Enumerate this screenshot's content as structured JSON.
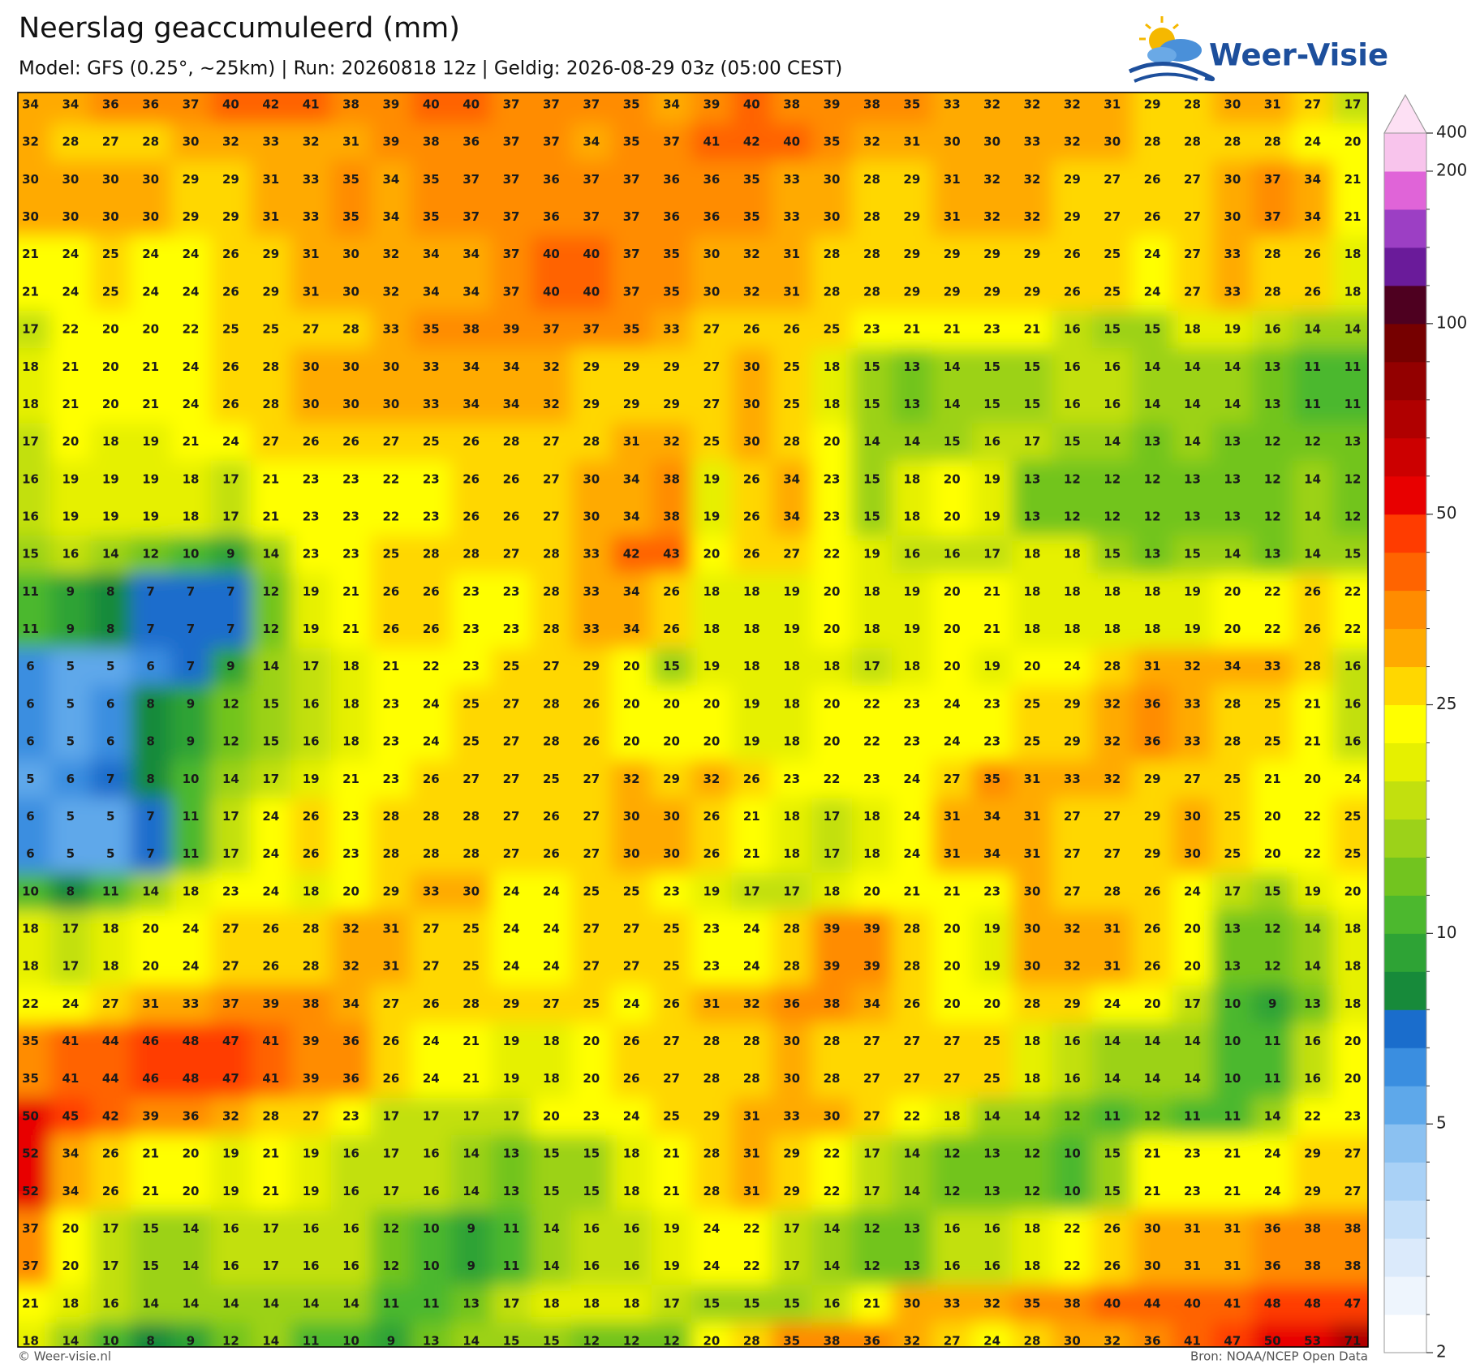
{
  "header": {
    "title": "Neerslag geaccumuleerd (mm)",
    "subtitle": "Model: GFS (0.25°, ~25km)  |  Run: 20260818 12z  |  Geldig: 2026-08-29 03z (05:00 CEST)"
  },
  "logo": {
    "text": "Weer-Visie"
  },
  "map": {
    "values": [
      [
        34,
        34,
        36,
        36,
        37,
        40,
        42,
        41,
        38,
        39,
        40,
        40,
        37,
        37,
        37,
        35,
        34,
        39,
        40,
        38,
        39,
        38,
        35,
        33,
        32,
        32,
        32,
        31,
        29,
        28,
        30,
        31,
        27,
        17
      ],
      [
        32,
        28,
        27,
        28,
        30,
        32,
        33,
        32,
        31,
        39,
        38,
        36,
        37,
        37,
        34,
        35,
        37,
        41,
        42,
        40,
        35,
        32,
        31,
        30,
        30,
        33,
        32,
        30,
        28,
        28,
        28,
        28,
        24,
        20
      ],
      [
        30,
        30,
        30,
        30,
        29,
        29,
        31,
        33,
        35,
        34,
        35,
        37,
        37,
        36,
        37,
        37,
        36,
        36,
        35,
        33,
        30,
        28,
        29,
        31,
        32,
        32,
        29,
        27,
        26,
        27,
        30,
        37,
        34,
        21
      ],
      [
        30,
        30,
        30,
        30,
        29,
        29,
        31,
        33,
        35,
        34,
        35,
        37,
        37,
        36,
        37,
        37,
        36,
        36,
        35,
        33,
        30,
        28,
        29,
        31,
        32,
        32,
        29,
        27,
        26,
        27,
        30,
        37,
        34,
        21
      ],
      [
        21,
        24,
        25,
        24,
        24,
        26,
        29,
        31,
        30,
        32,
        34,
        34,
        37,
        40,
        40,
        37,
        35,
        30,
        32,
        31,
        28,
        28,
        29,
        29,
        29,
        29,
        26,
        25,
        24,
        27,
        33,
        28,
        26,
        18
      ],
      [
        21,
        24,
        25,
        24,
        24,
        26,
        29,
        31,
        30,
        32,
        34,
        34,
        37,
        40,
        40,
        37,
        35,
        30,
        32,
        31,
        28,
        28,
        29,
        29,
        29,
        29,
        26,
        25,
        24,
        27,
        33,
        28,
        26,
        18
      ],
      [
        17,
        22,
        20,
        20,
        22,
        25,
        25,
        27,
        28,
        33,
        35,
        38,
        39,
        37,
        37,
        35,
        33,
        27,
        26,
        26,
        25,
        23,
        21,
        21,
        23,
        21,
        16,
        15,
        15,
        18,
        19,
        16,
        14,
        14
      ],
      [
        18,
        21,
        20,
        21,
        24,
        26,
        28,
        30,
        30,
        30,
        33,
        34,
        34,
        32,
        29,
        29,
        29,
        27,
        30,
        25,
        18,
        15,
        13,
        14,
        15,
        15,
        16,
        16,
        14,
        14,
        14,
        13,
        11,
        11
      ],
      [
        18,
        21,
        20,
        21,
        24,
        26,
        28,
        30,
        30,
        30,
        33,
        34,
        34,
        32,
        29,
        29,
        29,
        27,
        30,
        25,
        18,
        15,
        13,
        14,
        15,
        15,
        16,
        16,
        14,
        14,
        14,
        13,
        11,
        11
      ],
      [
        17,
        20,
        18,
        19,
        21,
        24,
        27,
        26,
        26,
        27,
        25,
        26,
        28,
        27,
        28,
        31,
        32,
        25,
        30,
        28,
        20,
        14,
        14,
        15,
        16,
        17,
        15,
        14,
        13,
        14,
        13,
        12,
        12,
        13
      ],
      [
        16,
        19,
        19,
        19,
        18,
        17,
        21,
        23,
        23,
        22,
        23,
        26,
        26,
        27,
        30,
        34,
        38,
        19,
        26,
        34,
        23,
        15,
        18,
        20,
        19,
        13,
        12,
        12,
        12,
        13,
        13,
        12,
        14,
        12
      ],
      [
        16,
        19,
        19,
        19,
        18,
        17,
        21,
        23,
        23,
        22,
        23,
        26,
        26,
        27,
        30,
        34,
        38,
        19,
        26,
        34,
        23,
        15,
        18,
        20,
        19,
        13,
        12,
        12,
        12,
        13,
        13,
        12,
        14,
        12
      ],
      [
        15,
        16,
        14,
        12,
        10,
        9,
        14,
        23,
        23,
        25,
        28,
        28,
        27,
        28,
        33,
        42,
        43,
        20,
        26,
        27,
        22,
        19,
        16,
        16,
        17,
        18,
        18,
        15,
        13,
        15,
        14,
        13,
        14,
        15
      ],
      [
        11,
        9,
        8,
        7,
        7,
        7,
        12,
        19,
        21,
        26,
        26,
        23,
        23,
        28,
        33,
        34,
        26,
        18,
        18,
        19,
        20,
        18,
        19,
        20,
        21,
        18,
        18,
        18,
        18,
        19,
        20,
        22,
        26,
        22
      ],
      [
        11,
        9,
        8,
        7,
        7,
        7,
        12,
        19,
        21,
        26,
        26,
        23,
        23,
        28,
        33,
        34,
        26,
        18,
        18,
        19,
        20,
        18,
        19,
        20,
        21,
        18,
        18,
        18,
        18,
        19,
        20,
        22,
        26,
        22
      ],
      [
        6,
        5,
        5,
        6,
        7,
        9,
        14,
        17,
        18,
        21,
        22,
        23,
        25,
        27,
        29,
        20,
        15,
        19,
        18,
        18,
        18,
        17,
        18,
        20,
        19,
        20,
        24,
        28,
        31,
        32,
        34,
        33,
        28,
        16
      ],
      [
        6,
        5,
        6,
        8,
        9,
        12,
        15,
        16,
        18,
        23,
        24,
        25,
        27,
        28,
        26,
        20,
        20,
        20,
        19,
        18,
        20,
        22,
        23,
        24,
        23,
        25,
        29,
        32,
        36,
        33,
        28,
        25,
        21,
        16
      ],
      [
        6,
        5,
        6,
        8,
        9,
        12,
        15,
        16,
        18,
        23,
        24,
        25,
        27,
        28,
        26,
        20,
        20,
        20,
        19,
        18,
        20,
        22,
        23,
        24,
        23,
        25,
        29,
        32,
        36,
        33,
        28,
        25,
        21,
        16
      ],
      [
        5,
        6,
        7,
        8,
        10,
        14,
        17,
        19,
        21,
        23,
        26,
        27,
        27,
        25,
        27,
        32,
        29,
        32,
        26,
        23,
        22,
        23,
        24,
        27,
        35,
        31,
        33,
        32,
        29,
        27,
        25,
        21,
        20,
        24
      ],
      [
        6,
        5,
        5,
        7,
        11,
        17,
        24,
        26,
        23,
        28,
        28,
        28,
        27,
        26,
        27,
        30,
        30,
        26,
        21,
        18,
        17,
        18,
        24,
        31,
        34,
        31,
        27,
        27,
        29,
        30,
        25,
        20,
        22,
        25
      ],
      [
        6,
        5,
        5,
        7,
        11,
        17,
        24,
        26,
        23,
        28,
        28,
        28,
        27,
        26,
        27,
        30,
        30,
        26,
        21,
        18,
        17,
        18,
        24,
        31,
        34,
        31,
        27,
        27,
        29,
        30,
        25,
        20,
        22,
        25
      ],
      [
        10,
        8,
        11,
        14,
        18,
        23,
        24,
        18,
        20,
        29,
        33,
        30,
        24,
        24,
        25,
        25,
        23,
        19,
        17,
        17,
        18,
        20,
        21,
        21,
        23,
        30,
        27,
        28,
        26,
        24,
        17,
        15,
        19,
        20
      ],
      [
        18,
        17,
        18,
        20,
        24,
        27,
        26,
        28,
        32,
        31,
        27,
        25,
        24,
        24,
        27,
        27,
        25,
        23,
        24,
        28,
        39,
        39,
        28,
        20,
        19,
        30,
        32,
        31,
        26,
        20,
        13,
        12,
        14,
        18
      ],
      [
        18,
        17,
        18,
        20,
        24,
        27,
        26,
        28,
        32,
        31,
        27,
        25,
        24,
        24,
        27,
        27,
        25,
        23,
        24,
        28,
        39,
        39,
        28,
        20,
        19,
        30,
        32,
        31,
        26,
        20,
        13,
        12,
        14,
        18
      ],
      [
        22,
        24,
        27,
        31,
        33,
        37,
        39,
        38,
        34,
        27,
        26,
        28,
        29,
        27,
        25,
        24,
        26,
        31,
        32,
        36,
        38,
        34,
        26,
        20,
        20,
        28,
        29,
        24,
        20,
        17,
        10,
        9,
        13,
        18
      ],
      [
        35,
        41,
        44,
        46,
        48,
        47,
        41,
        39,
        36,
        26,
        24,
        21,
        19,
        18,
        20,
        26,
        27,
        28,
        28,
        30,
        28,
        27,
        27,
        27,
        25,
        18,
        16,
        14,
        14,
        14,
        10,
        11,
        16,
        20
      ],
      [
        35,
        41,
        44,
        46,
        48,
        47,
        41,
        39,
        36,
        26,
        24,
        21,
        19,
        18,
        20,
        26,
        27,
        28,
        28,
        30,
        28,
        27,
        27,
        27,
        25,
        18,
        16,
        14,
        14,
        14,
        10,
        11,
        16,
        20
      ],
      [
        50,
        45,
        42,
        39,
        36,
        32,
        28,
        27,
        23,
        17,
        17,
        17,
        17,
        20,
        23,
        24,
        25,
        29,
        31,
        33,
        30,
        27,
        22,
        18,
        14,
        14,
        12,
        11,
        12,
        11,
        11,
        14,
        22,
        23
      ],
      [
        52,
        34,
        26,
        21,
        20,
        19,
        21,
        19,
        16,
        17,
        16,
        14,
        13,
        15,
        15,
        18,
        21,
        28,
        31,
        29,
        22,
        17,
        14,
        12,
        13,
        12,
        10,
        15,
        21,
        23,
        21,
        24,
        29,
        27
      ],
      [
        52,
        34,
        26,
        21,
        20,
        19,
        21,
        19,
        16,
        17,
        16,
        14,
        13,
        15,
        15,
        18,
        21,
        28,
        31,
        29,
        22,
        17,
        14,
        12,
        13,
        12,
        10,
        15,
        21,
        23,
        21,
        24,
        29,
        27
      ],
      [
        37,
        20,
        17,
        15,
        14,
        16,
        17,
        16,
        16,
        12,
        10,
        9,
        11,
        14,
        16,
        16,
        19,
        24,
        22,
        17,
        14,
        12,
        13,
        16,
        16,
        18,
        22,
        26,
        30,
        31,
        31,
        36,
        38,
        38
      ],
      [
        37,
        20,
        17,
        15,
        14,
        16,
        17,
        16,
        16,
        12,
        10,
        9,
        11,
        14,
        16,
        16,
        19,
        24,
        22,
        17,
        14,
        12,
        13,
        16,
        16,
        18,
        22,
        26,
        30,
        31,
        31,
        36,
        38,
        38
      ],
      [
        21,
        18,
        16,
        14,
        14,
        14,
        14,
        14,
        14,
        11,
        11,
        13,
        17,
        18,
        18,
        18,
        17,
        15,
        15,
        15,
        16,
        21,
        30,
        33,
        32,
        35,
        38,
        40,
        44,
        40,
        41,
        48,
        48,
        47
      ],
      [
        18,
        14,
        10,
        8,
        9,
        12,
        14,
        11,
        10,
        9,
        13,
        14,
        15,
        15,
        12,
        12,
        12,
        20,
        28,
        35,
        38,
        36,
        32,
        27,
        24,
        28,
        30,
        32,
        36,
        41,
        47,
        50,
        53,
        71
      ]
    ]
  },
  "colorbar": {
    "levels": [
      2,
      2.5,
      3,
      3.5,
      4,
      4.5,
      5,
      6,
      7,
      8,
      9,
      10,
      12,
      14,
      16,
      18,
      20,
      25,
      30,
      35,
      40,
      45,
      50,
      60,
      70,
      80,
      90,
      100,
      125,
      150,
      175,
      200,
      400
    ],
    "colors": [
      "#ffffff",
      "#eef5fd",
      "#dbeafb",
      "#c4dff9",
      "#a9d1f6",
      "#8bc1f1",
      "#5ea8ea",
      "#3a8ee0",
      "#1a6dcc",
      "#178a3a",
      "#2ea335",
      "#4cb82e",
      "#72c41f",
      "#9cd219",
      "#c2e00e",
      "#e6f000",
      "#ffff00",
      "#ffd700",
      "#ffaa00",
      "#ff8c00",
      "#ff6400",
      "#ff3c00",
      "#e80000",
      "#cc0000",
      "#b00000",
      "#930000",
      "#760000",
      "#4e0020",
      "#6a1b9a",
      "#9c3fc4",
      "#e064d8",
      "#f8c4ec"
    ],
    "extend_color": "#fde0f4",
    "ticks": [
      2,
      5,
      10,
      25,
      50,
      100,
      200,
      400
    ]
  },
  "footer": {
    "left": "© Weer-visie.nl",
    "right": "Bron: NOAA/NCEP Open Data"
  }
}
